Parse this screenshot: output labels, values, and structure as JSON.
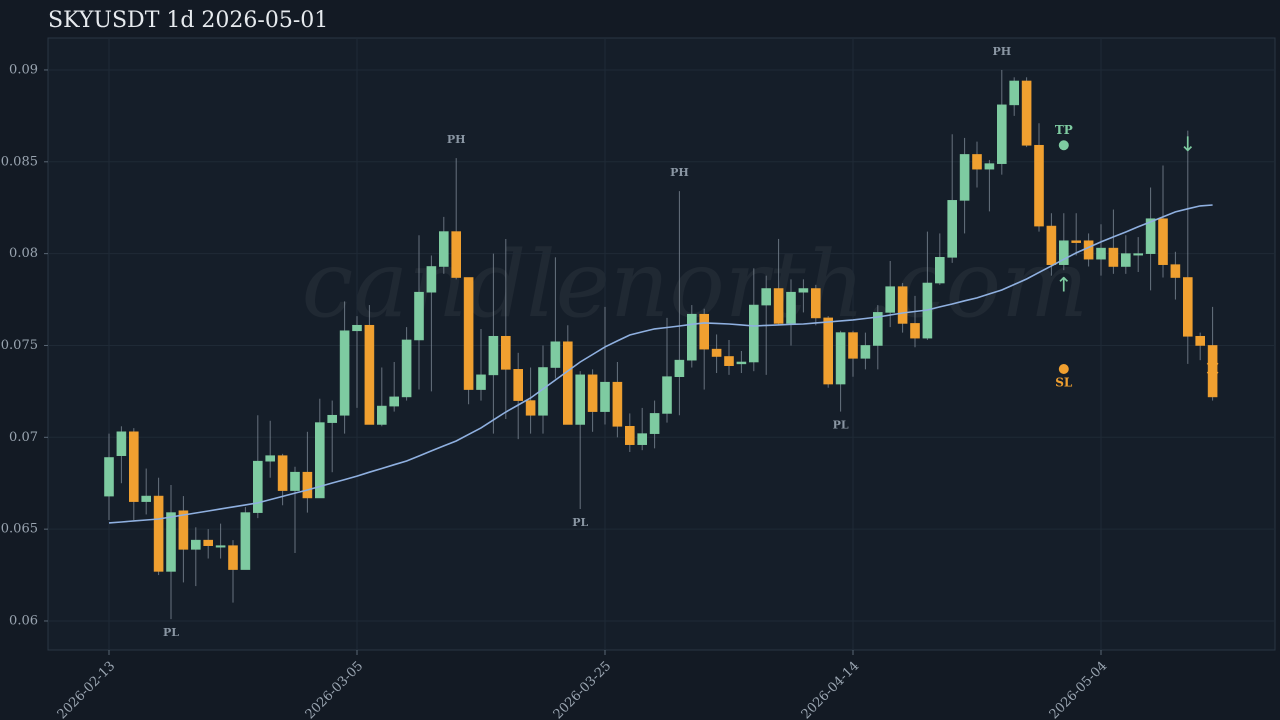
{
  "chart_data": {
    "type": "candlestick",
    "title": "SKYUSDT 1d 2026-05-01",
    "watermark": "candlenorth.com",
    "x": [
      "2026-02-13",
      "2026-02-14",
      "2026-02-15",
      "2026-02-16",
      "2026-02-17",
      "2026-02-18",
      "2026-02-19",
      "2026-02-20",
      "2026-02-21",
      "2026-02-22",
      "2026-02-23",
      "2026-02-24",
      "2026-02-25",
      "2026-02-26",
      "2026-02-27",
      "2026-02-28",
      "2026-03-01",
      "2026-03-02",
      "2026-03-03",
      "2026-03-04",
      "2026-03-05",
      "2026-03-06",
      "2026-03-07",
      "2026-03-08",
      "2026-03-09",
      "2026-03-10",
      "2026-03-11",
      "2026-03-12",
      "2026-03-13",
      "2026-03-14",
      "2026-03-15",
      "2026-03-16",
      "2026-03-17",
      "2026-03-18",
      "2026-03-19",
      "2026-03-20",
      "2026-03-21",
      "2026-03-22",
      "2026-03-23",
      "2026-03-24",
      "2026-03-25",
      "2026-03-26",
      "2026-03-27",
      "2026-03-28",
      "2026-03-29",
      "2026-03-30",
      "2026-03-31",
      "2026-04-01",
      "2026-04-02",
      "2026-04-03",
      "2026-04-04",
      "2026-04-05",
      "2026-04-06",
      "2026-04-07",
      "2026-04-08",
      "2026-04-09",
      "2026-04-10",
      "2026-04-11",
      "2026-04-12",
      "2026-04-13",
      "2026-04-14",
      "2026-04-15",
      "2026-04-16",
      "2026-04-17",
      "2026-04-18",
      "2026-04-19",
      "2026-04-20",
      "2026-04-21",
      "2026-04-22",
      "2026-04-23",
      "2026-04-24",
      "2026-04-25",
      "2026-04-26",
      "2026-04-27",
      "2026-04-28",
      "2026-04-29",
      "2026-04-30",
      "2026-05-01",
      "2026-05-02",
      "2026-05-03",
      "2026-05-04",
      "2026-05-05",
      "2026-05-06",
      "2026-05-07",
      "2026-05-08",
      "2026-05-09",
      "2026-05-10",
      "2026-05-11",
      "2026-05-12",
      "2026-05-13"
    ],
    "open": [
      0.0668,
      0.069,
      0.0703,
      0.0665,
      0.0668,
      0.0627,
      0.066,
      0.0639,
      0.0644,
      0.0641,
      0.0641,
      0.0628,
      0.0659,
      0.0687,
      0.069,
      0.0671,
      0.0681,
      0.0667,
      0.0708,
      0.0712,
      0.0758,
      0.0761,
      0.0707,
      0.0717,
      0.0722,
      0.0753,
      0.0779,
      0.0793,
      0.0812,
      0.0787,
      0.0726,
      0.0734,
      0.0755,
      0.0737,
      0.072,
      0.0712,
      0.0738,
      0.0752,
      0.0707,
      0.0734,
      0.0714,
      0.073,
      0.0706,
      0.0696,
      0.0702,
      0.0713,
      0.0733,
      0.0742,
      0.0767,
      0.0748,
      0.0744,
      0.074,
      0.0741,
      0.0772,
      0.0781,
      0.0762,
      0.0779,
      0.0781,
      0.0765,
      0.0729,
      0.0757,
      0.0743,
      0.075,
      0.0768,
      0.0782,
      0.0762,
      0.0754,
      0.0784,
      0.0798,
      0.0829,
      0.0854,
      0.0846,
      0.0849,
      0.0881,
      0.0894,
      0.0859,
      0.0815,
      0.0794,
      0.0807,
      0.0807,
      0.0797,
      0.0803,
      0.0793,
      0.08,
      0.08,
      0.0819,
      0.0794,
      0.0787,
      0.0755,
      0.075
    ],
    "high": [
      0.0702,
      0.0706,
      0.0705,
      0.0683,
      0.0678,
      0.0674,
      0.0668,
      0.0651,
      0.065,
      0.0653,
      0.0644,
      0.0662,
      0.0712,
      0.0709,
      0.0691,
      0.0684,
      0.0703,
      0.0721,
      0.072,
      0.0774,
      0.0766,
      0.0772,
      0.0738,
      0.0741,
      0.076,
      0.081,
      0.0799,
      0.082,
      0.0852,
      0.0787,
      0.0759,
      0.08,
      0.0808,
      0.0746,
      0.0738,
      0.075,
      0.0798,
      0.0761,
      0.0736,
      0.0737,
      0.0771,
      0.0741,
      0.0713,
      0.0716,
      0.072,
      0.0765,
      0.0834,
      0.0772,
      0.077,
      0.0756,
      0.0753,
      0.0747,
      0.0792,
      0.0788,
      0.0808,
      0.0786,
      0.0786,
      0.0783,
      0.0766,
      0.0758,
      0.0758,
      0.0757,
      0.0772,
      0.0796,
      0.0784,
      0.0777,
      0.0812,
      0.0811,
      0.0865,
      0.0863,
      0.0861,
      0.0851,
      0.09,
      0.0896,
      0.0896,
      0.0871,
      0.0822,
      0.0822,
      0.0822,
      0.0811,
      0.0816,
      0.0824,
      0.081,
      0.0809,
      0.0836,
      0.0848,
      0.0801,
      0.0867,
      0.0757,
      0.0771
    ],
    "low": [
      0.0655,
      0.0675,
      0.0655,
      0.0658,
      0.0625,
      0.0601,
      0.0621,
      0.0619,
      0.0634,
      0.0634,
      0.061,
      0.0628,
      0.0656,
      0.0678,
      0.0663,
      0.0637,
      0.0659,
      0.0667,
      0.0681,
      0.0702,
      0.0716,
      0.0707,
      0.0706,
      0.0714,
      0.072,
      0.0726,
      0.0725,
      0.0789,
      0.0786,
      0.0718,
      0.072,
      0.0702,
      0.071,
      0.0699,
      0.0702,
      0.0702,
      0.0732,
      0.0707,
      0.0661,
      0.0703,
      0.0707,
      0.07,
      0.0692,
      0.0693,
      0.0694,
      0.0708,
      0.0712,
      0.0738,
      0.0726,
      0.0735,
      0.0734,
      0.0735,
      0.0736,
      0.0734,
      0.0761,
      0.075,
      0.0768,
      0.0761,
      0.0727,
      0.0714,
      0.0733,
      0.0737,
      0.0737,
      0.076,
      0.0757,
      0.0749,
      0.0753,
      0.0783,
      0.0795,
      0.0811,
      0.0836,
      0.0823,
      0.0843,
      0.0875,
      0.0858,
      0.0812,
      0.0788,
      0.0791,
      0.0799,
      0.0793,
      0.0788,
      0.0789,
      0.0789,
      0.079,
      0.078,
      0.0787,
      0.0775,
      0.074,
      0.0742,
      0.072
    ],
    "close": [
      0.0689,
      0.0703,
      0.0665,
      0.0668,
      0.0627,
      0.0659,
      0.0639,
      0.0644,
      0.0641,
      0.0641,
      0.0628,
      0.0659,
      0.0687,
      0.069,
      0.0671,
      0.0681,
      0.0667,
      0.0708,
      0.0712,
      0.0758,
      0.0761,
      0.0707,
      0.0717,
      0.0722,
      0.0753,
      0.0779,
      0.0793,
      0.0812,
      0.0787,
      0.0726,
      0.0734,
      0.0755,
      0.0737,
      0.072,
      0.0712,
      0.0738,
      0.0752,
      0.0707,
      0.0734,
      0.0714,
      0.073,
      0.0706,
      0.0696,
      0.0702,
      0.0713,
      0.0733,
      0.0742,
      0.0767,
      0.0748,
      0.0744,
      0.0739,
      0.0741,
      0.0772,
      0.0781,
      0.0762,
      0.0779,
      0.0781,
      0.0765,
      0.0729,
      0.0757,
      0.0743,
      0.075,
      0.0768,
      0.0782,
      0.0762,
      0.0754,
      0.0784,
      0.0798,
      0.0829,
      0.0854,
      0.0846,
      0.0849,
      0.0881,
      0.0894,
      0.0859,
      0.0815,
      0.0794,
      0.0807,
      0.0806,
      0.0797,
      0.0803,
      0.0793,
      0.08,
      0.08,
      0.0819,
      0.0794,
      0.0787,
      0.0755,
      0.075,
      0.0722
    ],
    "ma": [
      0.06534,
      0.06539,
      0.06545,
      0.0655,
      0.06555,
      0.06566,
      0.06577,
      0.06588,
      0.06599,
      0.0661,
      0.06621,
      0.06632,
      0.06643,
      0.06661,
      0.06678,
      0.06696,
      0.06713,
      0.06732,
      0.06751,
      0.0677,
      0.06789,
      0.0681,
      0.0683,
      0.06851,
      0.06871,
      0.06898,
      0.06926,
      0.06953,
      0.0698,
      0.07016,
      0.07051,
      0.07095,
      0.07138,
      0.07176,
      0.07214,
      0.07263,
      0.07312,
      0.07361,
      0.0741,
      0.07451,
      0.07492,
      0.07525,
      0.07557,
      0.07574,
      0.0759,
      0.07598,
      0.07606,
      0.07615,
      0.07623,
      0.0762,
      0.07617,
      0.07612,
      0.07606,
      0.07609,
      0.07612,
      0.07615,
      0.07617,
      0.07623,
      0.07628,
      0.07634,
      0.07639,
      0.07647,
      0.07655,
      0.07666,
      0.07677,
      0.07685,
      0.07693,
      0.0771,
      0.07726,
      0.07743,
      0.07759,
      0.07781,
      0.07802,
      0.07832,
      0.07862,
      0.07898,
      0.07933,
      0.07969,
      0.08004,
      0.08034,
      0.08064,
      0.08091,
      0.08118,
      0.08146,
      0.08173,
      0.082,
      0.08227,
      0.08244,
      0.0826,
      0.08265
    ],
    "up_color": "#7ecba1",
    "down_color": "#f0a030",
    "ma_color": "#8fb0e0",
    "ylim": [
      0.05842,
      0.09174
    ],
    "yticks": [
      0.06,
      0.065,
      0.07,
      0.075,
      0.08,
      0.085,
      0.09
    ],
    "xticks": [
      "2026-02-13",
      "2026-03-05",
      "2026-03-25",
      "2026-04-14",
      "2026-05-04"
    ],
    "grid": true,
    "annotations": [
      {
        "text": "PL",
        "x": "2026-02-18",
        "anchor": "low",
        "color": "#8a96a3"
      },
      {
        "text": "PH",
        "x": "2026-03-13",
        "anchor": "high",
        "color": "#8a96a3"
      },
      {
        "text": "PL",
        "x": "2026-03-23",
        "anchor": "low",
        "color": "#8a96a3"
      },
      {
        "text": "PH",
        "x": "2026-03-31",
        "anchor": "high",
        "color": "#8a96a3"
      },
      {
        "text": "PL",
        "x": "2026-04-13",
        "anchor": "low",
        "color": "#8a96a3"
      },
      {
        "text": "PH",
        "x": "2026-04-26",
        "anchor": "high",
        "color": "#8a96a3"
      },
      {
        "text": "TP",
        "x": "2026-05-01",
        "y": 0.0859,
        "marker": "dot",
        "label_side": "above",
        "color": "#7ecba1"
      },
      {
        "text": "SL",
        "x": "2026-05-01",
        "y": 0.07372,
        "marker": "dot",
        "label_side": "below",
        "color": "#f0a030"
      },
      {
        "text": "↑",
        "x": "2026-05-01",
        "y": 0.07824,
        "color": "#7ecba1"
      },
      {
        "text": "↓",
        "x": "2026-05-11",
        "y": 0.0859,
        "color": "#7ecba1"
      },
      {
        "text": "✕",
        "x": "2026-05-13",
        "y": 0.07367,
        "color": "#f0a030"
      }
    ]
  }
}
